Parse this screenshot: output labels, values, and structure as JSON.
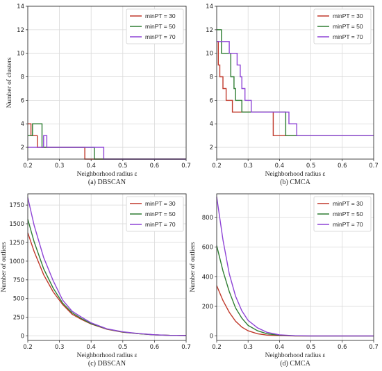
{
  "chart_data": [
    {
      "type": "line",
      "step": true,
      "caption": "(a) DBSCAN",
      "xlabel": "Neighborhood radius ε",
      "ylabel": "Number of clusters",
      "xlim": [
        0.2,
        0.7
      ],
      "ylim": [
        1,
        14
      ],
      "xticks": [
        "0.2",
        "0.3",
        "0.4",
        "0.5",
        "0.6",
        "0.7"
      ],
      "yticks": [
        "2",
        "4",
        "6",
        "8",
        "10",
        "12",
        "14"
      ],
      "grid": true,
      "legend_position": "top-right",
      "series": [
        {
          "name": "minPT = 30",
          "color": "#c0392b",
          "x": [
            0.2,
            0.21,
            0.21,
            0.23,
            0.23,
            0.38,
            0.38,
            0.7
          ],
          "y": [
            4,
            4,
            3,
            3,
            2,
            2,
            1,
            1
          ]
        },
        {
          "name": "minPT = 50",
          "color": "#2e7d32",
          "x": [
            0.2,
            0.215,
            0.215,
            0.245,
            0.245,
            0.41,
            0.41,
            0.7
          ],
          "y": [
            3,
            3,
            4,
            4,
            2,
            2,
            1,
            1
          ]
        },
        {
          "name": "minPT = 70",
          "color": "#8e44d6",
          "x": [
            0.2,
            0.25,
            0.25,
            0.26,
            0.26,
            0.44,
            0.44,
            0.7
          ],
          "y": [
            2,
            2,
            3,
            3,
            2,
            2,
            1,
            1
          ]
        }
      ]
    },
    {
      "type": "line",
      "step": true,
      "caption": "(b) CMCA",
      "xlabel": "Neighborhood radius ε",
      "ylabel": "",
      "xlim": [
        0.2,
        0.7
      ],
      "ylim": [
        1,
        14
      ],
      "xticks": [
        "0.2",
        "0.3",
        "0.4",
        "0.5",
        "0.6",
        "0.7"
      ],
      "yticks": [
        "2",
        "4",
        "6",
        "8",
        "10",
        "12",
        "14"
      ],
      "grid": true,
      "legend_position": "top-right",
      "series": [
        {
          "name": "minPT = 30",
          "color": "#c0392b",
          "x": [
            0.2,
            0.205,
            0.205,
            0.21,
            0.21,
            0.22,
            0.22,
            0.23,
            0.23,
            0.25,
            0.25,
            0.38,
            0.38,
            0.7
          ],
          "y": [
            11,
            11,
            9,
            9,
            8,
            8,
            7,
            7,
            6,
            6,
            5,
            5,
            3,
            3
          ]
        },
        {
          "name": "minPT = 50",
          "color": "#2e7d32",
          "x": [
            0.2,
            0.215,
            0.215,
            0.245,
            0.245,
            0.255,
            0.255,
            0.26,
            0.26,
            0.28,
            0.28,
            0.42,
            0.42,
            0.7
          ],
          "y": [
            12,
            12,
            10,
            10,
            8,
            8,
            7,
            7,
            6,
            6,
            5,
            5,
            3,
            3
          ]
        },
        {
          "name": "minPT = 70",
          "color": "#8e44d6",
          "x": [
            0.2,
            0.24,
            0.24,
            0.265,
            0.265,
            0.275,
            0.275,
            0.28,
            0.28,
            0.29,
            0.29,
            0.31,
            0.31,
            0.43,
            0.43,
            0.445,
            0.445,
            0.455,
            0.455,
            0.7
          ],
          "y": [
            11,
            11,
            10,
            10,
            9,
            9,
            8,
            8,
            7,
            7,
            6,
            6,
            5,
            5,
            4,
            4,
            4,
            4,
            3,
            3
          ]
        }
      ]
    },
    {
      "type": "line",
      "step": false,
      "caption": "(c) DBSCAN",
      "xlabel": "Neighborhood radius ε",
      "ylabel": "Number of outliers",
      "xlim": [
        0.2,
        0.7
      ],
      "ylim": [
        -60,
        1900
      ],
      "xticks": [
        "0.2",
        "0.3",
        "0.4",
        "0.5",
        "0.6",
        "0.7"
      ],
      "yticks": [
        "0",
        "250",
        "500",
        "750",
        "1000",
        "1250",
        "1500",
        "1750"
      ],
      "grid": true,
      "legend_position": "top-right",
      "series": [
        {
          "name": "minPT = 30",
          "color": "#c0392b",
          "x": [
            0.2,
            0.22,
            0.25,
            0.28,
            0.31,
            0.34,
            0.37,
            0.4,
            0.45,
            0.5,
            0.55,
            0.6,
            0.65,
            0.7
          ],
          "y": [
            1380,
            1130,
            820,
            590,
            420,
            290,
            220,
            160,
            90,
            50,
            30,
            15,
            8,
            5
          ]
        },
        {
          "name": "minPT = 50",
          "color": "#2e7d32",
          "x": [
            0.2,
            0.22,
            0.25,
            0.28,
            0.31,
            0.34,
            0.37,
            0.4,
            0.45,
            0.5,
            0.55,
            0.6,
            0.65,
            0.7
          ],
          "y": [
            1560,
            1260,
            900,
            640,
            440,
            310,
            230,
            165,
            92,
            52,
            30,
            15,
            8,
            5
          ]
        },
        {
          "name": "minPT = 70",
          "color": "#8e44d6",
          "x": [
            0.2,
            0.22,
            0.25,
            0.28,
            0.31,
            0.34,
            0.37,
            0.4,
            0.45,
            0.5,
            0.55,
            0.6,
            0.65,
            0.7
          ],
          "y": [
            1850,
            1480,
            1050,
            740,
            480,
            330,
            250,
            175,
            95,
            55,
            32,
            16,
            8,
            5
          ]
        }
      ]
    },
    {
      "type": "line",
      "step": false,
      "caption": "(d) CMCA",
      "xlabel": "Neighborhood radius ε",
      "ylabel": "Number of outliers",
      "xlim": [
        0.2,
        0.7
      ],
      "ylim": [
        -30,
        960
      ],
      "xticks": [
        "0.2",
        "0.3",
        "0.4",
        "0.5",
        "0.6",
        "0.7"
      ],
      "yticks": [
        "0",
        "200",
        "400",
        "600",
        "800"
      ],
      "grid": true,
      "legend_position": "top-right",
      "series": [
        {
          "name": "minPT = 30",
          "color": "#c0392b",
          "x": [
            0.2,
            0.22,
            0.24,
            0.26,
            0.28,
            0.3,
            0.33,
            0.36,
            0.4,
            0.45,
            0.5,
            0.7
          ],
          "y": [
            340,
            240,
            160,
            100,
            60,
            35,
            15,
            6,
            2,
            0,
            0,
            0
          ]
        },
        {
          "name": "minPT = 50",
          "color": "#2e7d32",
          "x": [
            0.2,
            0.22,
            0.24,
            0.26,
            0.28,
            0.3,
            0.33,
            0.36,
            0.4,
            0.45,
            0.5,
            0.7
          ],
          "y": [
            610,
            440,
            300,
            190,
            120,
            72,
            35,
            15,
            5,
            1,
            0,
            0
          ]
        },
        {
          "name": "minPT = 70",
          "color": "#8e44d6",
          "x": [
            0.2,
            0.22,
            0.24,
            0.26,
            0.28,
            0.3,
            0.33,
            0.36,
            0.4,
            0.45,
            0.5,
            0.7
          ],
          "y": [
            940,
            650,
            420,
            270,
            170,
            105,
            55,
            25,
            8,
            2,
            0,
            0
          ]
        }
      ]
    }
  ]
}
